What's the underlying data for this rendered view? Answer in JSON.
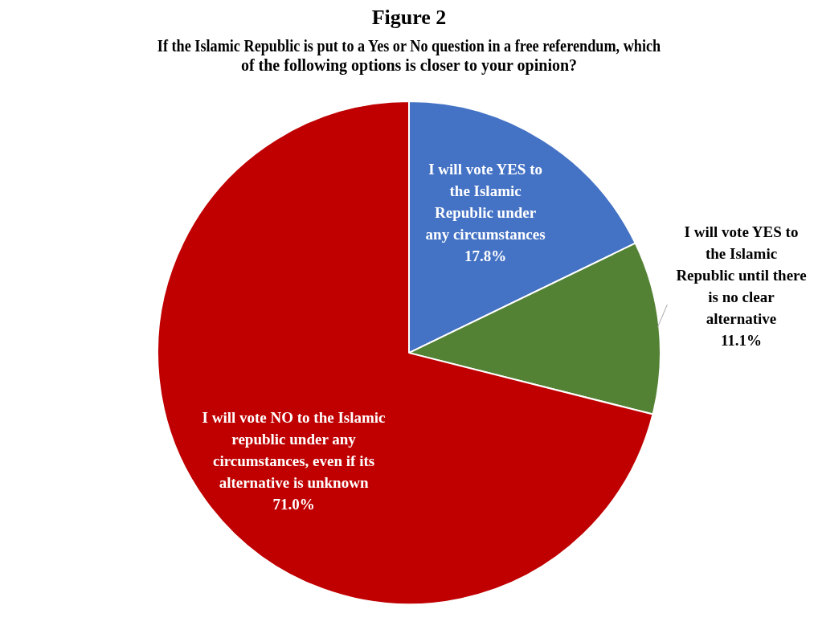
{
  "chart_data": {
    "type": "pie",
    "title": "Figure 2",
    "subtitle": "If the Islamic Republic is put to a Yes or No question in a free referendum, which of the following options is closer to your opinion?",
    "categories": [
      "I will vote YES to the Islamic Republic under any circumstances",
      "I will vote YES to the Islamic Republic until there is no clear alternative",
      "I will vote NO to the Islamic republic under any circumstances, even if its alternative is unknown"
    ],
    "values": [
      17.8,
      11.1,
      71.0
    ],
    "colors": [
      "#4472c4",
      "#548235",
      "#c00000"
    ],
    "value_labels": [
      "17.8%",
      "11.1%",
      "71.0%"
    ],
    "legend": false
  }
}
